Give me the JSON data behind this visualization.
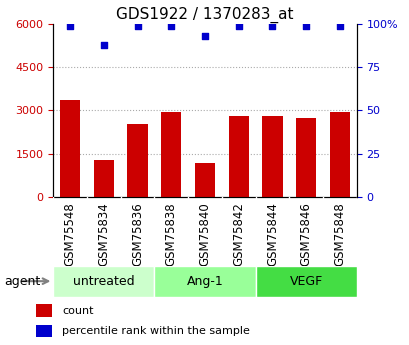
{
  "title": "GDS1922 / 1370283_at",
  "categories": [
    "GSM75548",
    "GSM75834",
    "GSM75836",
    "GSM75838",
    "GSM75840",
    "GSM75842",
    "GSM75844",
    "GSM75846",
    "GSM75848"
  ],
  "count_values": [
    3370,
    1290,
    2530,
    2960,
    1170,
    2800,
    2820,
    2720,
    2960
  ],
  "percentile_values": [
    99,
    88,
    99,
    99,
    93,
    99,
    99,
    99,
    99
  ],
  "bar_color": "#cc0000",
  "dot_color": "#0000cc",
  "ylim_left": [
    0,
    6000
  ],
  "ylim_right": [
    0,
    100
  ],
  "yticks_left": [
    0,
    1500,
    3000,
    4500,
    6000
  ],
  "ytick_labels_left": [
    "0",
    "1500",
    "3000",
    "4500",
    "6000"
  ],
  "yticks_right": [
    0,
    25,
    50,
    75,
    100
  ],
  "ytick_labels_right": [
    "0",
    "25",
    "50",
    "75",
    "100%"
  ],
  "group_labels": [
    "untreated",
    "Ang-1",
    "VEGF"
  ],
  "group_ranges": [
    [
      0,
      3
    ],
    [
      3,
      6
    ],
    [
      6,
      9
    ]
  ],
  "group_colors": [
    "#ccffcc",
    "#99ff99",
    "#44dd44"
  ],
  "agent_label": "agent",
  "legend_count_label": "count",
  "legend_pct_label": "percentile rank within the sample",
  "gridline_color": "#aaaaaa",
  "xtick_bg_color": "#cccccc",
  "title_fontsize": 11,
  "tick_fontsize": 8,
  "label_fontsize": 9,
  "legend_fontsize": 8
}
